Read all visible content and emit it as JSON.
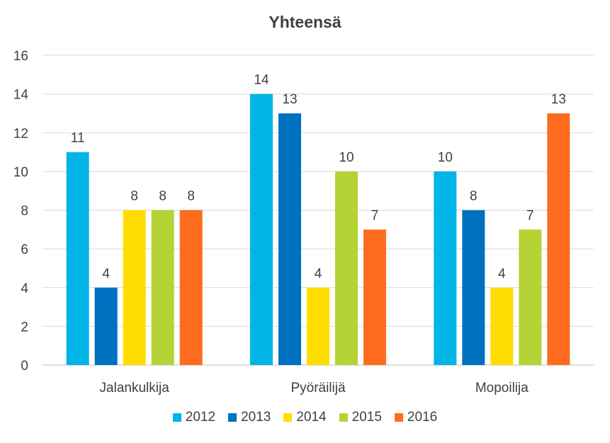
{
  "chart_data": {
    "type": "bar",
    "title": "Yhteensä",
    "xlabel": "",
    "ylabel": "",
    "categories": [
      "Jalankulkija",
      "Pyöräilijä",
      "Mopoilija"
    ],
    "series": [
      {
        "name": "2012",
        "color": "#00B4E6",
        "values": [
          11,
          14,
          10
        ]
      },
      {
        "name": "2013",
        "color": "#0070C0",
        "values": [
          4,
          13,
          8
        ]
      },
      {
        "name": "2014",
        "color": "#FFDD00",
        "values": [
          8,
          4,
          4
        ]
      },
      {
        "name": "2015",
        "color": "#B5D334",
        "values": [
          8,
          10,
          7
        ]
      },
      {
        "name": "2016",
        "color": "#FF6B1F",
        "values": [
          8,
          7,
          13
        ]
      }
    ],
    "ylim": [
      0,
      16
    ],
    "yticks": [
      0,
      2,
      4,
      6,
      8,
      10,
      12,
      14,
      16
    ],
    "grid": true,
    "legend_position": "bottom",
    "data_labels": true
  }
}
